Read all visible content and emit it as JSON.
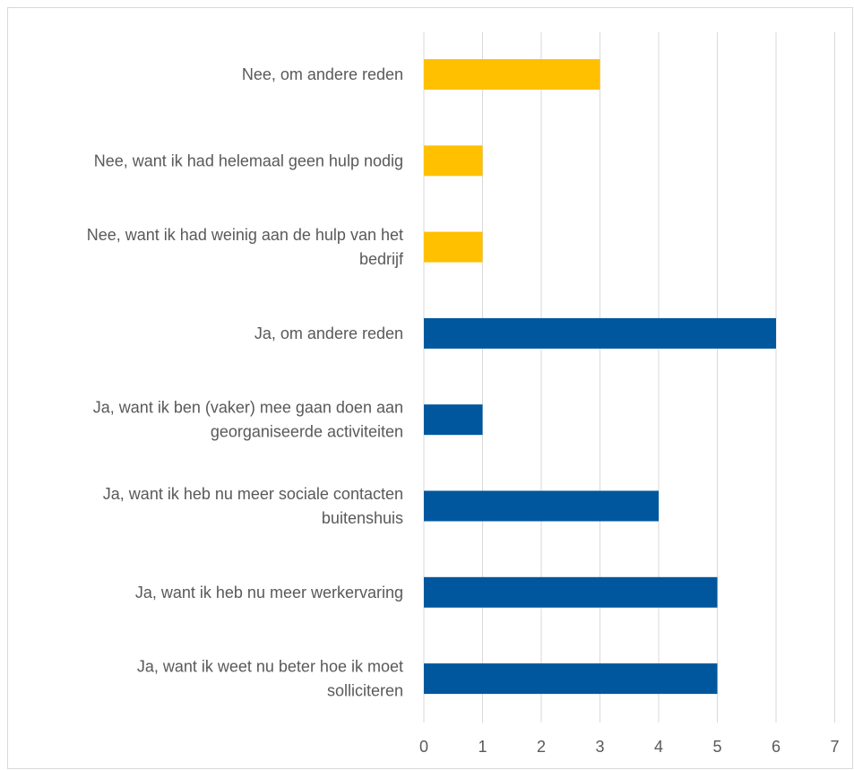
{
  "chart_data": {
    "type": "bar",
    "orientation": "horizontal",
    "title": "",
    "xlabel": "",
    "ylabel": "",
    "categories": [
      {
        "lines": [
          "Nee, om andere reden"
        ],
        "group": "nee"
      },
      {
        "lines": [
          "Nee, want ik had helemaal geen hulp nodig"
        ],
        "group": "nee"
      },
      {
        "lines": [
          "Nee, want ik had weinig aan de hulp van het",
          "bedrijf"
        ],
        "group": "nee"
      },
      {
        "lines": [
          "Ja, om andere reden"
        ],
        "group": "ja"
      },
      {
        "lines": [
          "Ja, want ik ben (vaker) mee gaan doen aan",
          "georganiseerde activiteiten"
        ],
        "group": "ja"
      },
      {
        "lines": [
          "Ja, want ik heb nu meer sociale contacten",
          "buitenshuis"
        ],
        "group": "ja"
      },
      {
        "lines": [
          "Ja, want ik heb nu meer werkervaring"
        ],
        "group": "ja"
      },
      {
        "lines": [
          "Ja, want ik weet nu beter hoe ik moet",
          "solliciteren"
        ],
        "group": "ja"
      }
    ],
    "values": [
      3,
      1,
      1,
      6,
      1,
      4,
      5,
      5
    ],
    "xlim": [
      0,
      7
    ],
    "xticks": [
      "0",
      "1",
      "2",
      "3",
      "4",
      "5",
      "6",
      "7"
    ],
    "grid": true,
    "legend": "none",
    "colors": {
      "nee": "#FFC000",
      "ja": "#00579D",
      "grid": "#d9d9d9",
      "text": "#595959"
    }
  }
}
